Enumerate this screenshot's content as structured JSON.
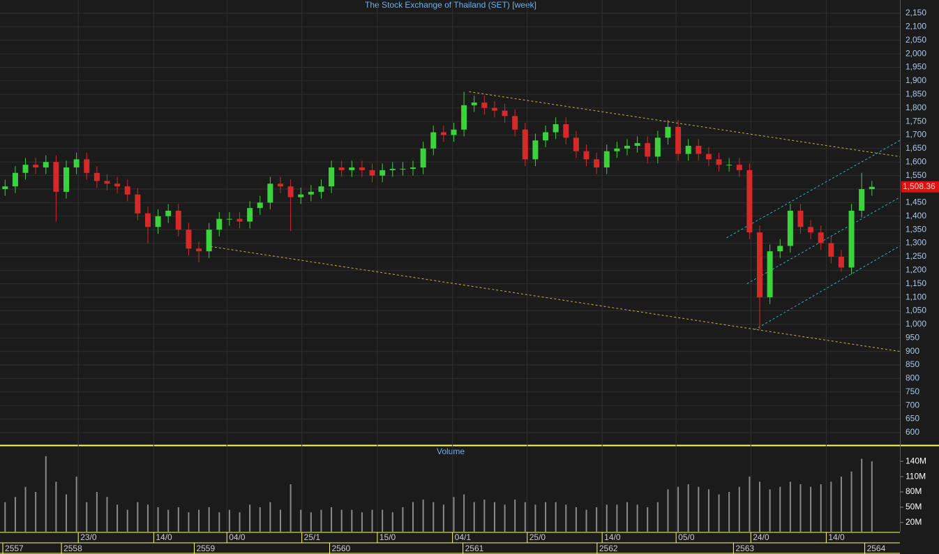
{
  "chart_data": [
    {
      "type": "candlestick",
      "title": "The Stock Exchange of Thailand (SET) [week]",
      "up_color": "#3bd23b",
      "down_color": "#d42a2a",
      "x": [
        2,
        6,
        10,
        14,
        18,
        22,
        26,
        30,
        34,
        38,
        42,
        46,
        50,
        54,
        58,
        62,
        66,
        70,
        74,
        78,
        82,
        86,
        90,
        94,
        98,
        102,
        106,
        110,
        114,
        118,
        122,
        126,
        130,
        134,
        138,
        142,
        146,
        150,
        154,
        158,
        162,
        166,
        170,
        174,
        178,
        182,
        186,
        190,
        194,
        198,
        202,
        206,
        210,
        214,
        218,
        222,
        226,
        230,
        234,
        238,
        242,
        246,
        250,
        254,
        258,
        262,
        266,
        270,
        274,
        278,
        282,
        286,
        290,
        294,
        298,
        302,
        306,
        310,
        314,
        318,
        322,
        326,
        330,
        334,
        338,
        342
      ],
      "open": [
        1500,
        1510,
        1560,
        1590,
        1580,
        1600,
        1490,
        1580,
        1610,
        1560,
        1530,
        1520,
        1510,
        1480,
        1410,
        1360,
        1400,
        1420,
        1350,
        1280,
        1270,
        1350,
        1390,
        1390,
        1380,
        1430,
        1450,
        1520,
        1510,
        1470,
        1480,
        1490,
        1510,
        1580,
        1570,
        1580,
        1570,
        1550,
        1570,
        1575,
        1575,
        1580,
        1650,
        1710,
        1700,
        1720,
        1810,
        1820,
        1800,
        1790,
        1770,
        1720,
        1610,
        1680,
        1710,
        1740,
        1690,
        1640,
        1610,
        1580,
        1640,
        1650,
        1660,
        1670,
        1620,
        1690,
        1730,
        1630,
        1660,
        1630,
        1610,
        1590,
        1590,
        1570,
        1340,
        1100,
        1270,
        1290,
        1420,
        1360,
        1340,
        1300,
        1250,
        1210,
        1420,
        1500
      ],
      "high": [
        1535,
        1585,
        1615,
        1615,
        1625,
        1625,
        1605,
        1635,
        1635,
        1585,
        1555,
        1545,
        1535,
        1505,
        1435,
        1425,
        1445,
        1445,
        1375,
        1305,
        1375,
        1415,
        1415,
        1415,
        1455,
        1475,
        1545,
        1545,
        1535,
        1505,
        1515,
        1535,
        1605,
        1605,
        1605,
        1605,
        1595,
        1595,
        1600,
        1600,
        1605,
        1675,
        1735,
        1735,
        1745,
        1860,
        1845,
        1845,
        1825,
        1815,
        1795,
        1745,
        1705,
        1735,
        1765,
        1765,
        1715,
        1665,
        1635,
        1665,
        1675,
        1685,
        1695,
        1695,
        1715,
        1755,
        1755,
        1685,
        1685,
        1655,
        1635,
        1615,
        1615,
        1595,
        1365,
        1295,
        1315,
        1445,
        1445,
        1385,
        1365,
        1325,
        1275,
        1445,
        1560,
        1530
      ],
      "low": [
        1475,
        1485,
        1535,
        1555,
        1555,
        1380,
        1465,
        1555,
        1535,
        1505,
        1495,
        1485,
        1455,
        1385,
        1300,
        1335,
        1375,
        1325,
        1255,
        1230,
        1245,
        1325,
        1365,
        1355,
        1355,
        1405,
        1425,
        1485,
        1345,
        1445,
        1455,
        1465,
        1485,
        1545,
        1545,
        1545,
        1525,
        1525,
        1545,
        1550,
        1550,
        1555,
        1625,
        1675,
        1675,
        1695,
        1785,
        1775,
        1765,
        1745,
        1695,
        1585,
        1585,
        1655,
        1685,
        1665,
        1615,
        1585,
        1555,
        1555,
        1615,
        1625,
        1635,
        1595,
        1595,
        1665,
        1605,
        1605,
        1605,
        1585,
        1565,
        1565,
        1545,
        1315,
        980,
        1075,
        1245,
        1265,
        1335,
        1315,
        1275,
        1225,
        1195,
        1185,
        1395,
        1475
      ],
      "close": [
        1510,
        1560,
        1590,
        1580,
        1600,
        1490,
        1580,
        1610,
        1560,
        1530,
        1520,
        1510,
        1480,
        1410,
        1360,
        1400,
        1420,
        1350,
        1280,
        1270,
        1350,
        1390,
        1390,
        1380,
        1430,
        1450,
        1520,
        1510,
        1470,
        1480,
        1490,
        1510,
        1580,
        1570,
        1580,
        1570,
        1550,
        1570,
        1575,
        1575,
        1580,
        1650,
        1710,
        1700,
        1720,
        1810,
        1820,
        1800,
        1790,
        1770,
        1720,
        1610,
        1680,
        1710,
        1740,
        1690,
        1640,
        1610,
        1580,
        1640,
        1650,
        1660,
        1670,
        1620,
        1690,
        1730,
        1630,
        1660,
        1630,
        1610,
        1590,
        1590,
        1570,
        1340,
        1100,
        1270,
        1290,
        1420,
        1360,
        1340,
        1300,
        1250,
        1210,
        1420,
        1500,
        1508.36
      ],
      "last_price": {
        "value": 1508.36,
        "label": "1,508.36"
      },
      "xlim": [
        0,
        353
      ],
      "ylim": [
        556,
        2199
      ],
      "yticks": [
        600,
        650,
        700,
        750,
        800,
        850,
        900,
        950,
        {
          "value": 1000,
          "label": "1,000"
        },
        {
          "value": 1050,
          "label": "1,050"
        },
        {
          "value": 1100,
          "label": "1,100"
        },
        {
          "value": 1150,
          "label": "1,150"
        },
        {
          "value": 1200,
          "label": "1,200"
        },
        {
          "value": 1250,
          "label": "1,250"
        },
        {
          "value": 1300,
          "label": "1,300"
        },
        {
          "value": 1350,
          "label": "1,350"
        },
        {
          "value": 1400,
          "label": "1,400"
        },
        {
          "value": 1450,
          "label": "1,450"
        },
        {
          "value": 1500,
          "label": "1,500"
        },
        {
          "value": 1550,
          "label": "1,550"
        },
        {
          "value": 1600,
          "label": "1,600"
        },
        {
          "value": 1650,
          "label": "1,650"
        },
        {
          "value": 1700,
          "label": "1,700"
        },
        {
          "value": 1750,
          "label": "1,750"
        },
        {
          "value": 1800,
          "label": "1,800"
        },
        {
          "value": 1850,
          "label": "1,850"
        },
        {
          "value": 1900,
          "label": "1,900"
        },
        {
          "value": 1950,
          "label": "1,950"
        },
        {
          "value": 2000,
          "label": "2,000"
        },
        {
          "value": 2050,
          "label": "2,050"
        },
        {
          "value": 2100,
          "label": "2,100"
        },
        {
          "value": 2150,
          "label": "2,150"
        }
      ],
      "xticks": [
        {
          "value": 30.7,
          "label": "23/0"
        },
        {
          "value": 60.3,
          "label": "14/0"
        },
        {
          "value": 89,
          "label": "04/0"
        },
        {
          "value": 118.4,
          "label": "25/1"
        },
        {
          "value": 148,
          "label": "15/0"
        },
        {
          "value": 177.5,
          "label": "04/1"
        },
        {
          "value": 206.8,
          "label": "25/0"
        },
        {
          "value": 236.2,
          "label": "14/0"
        },
        {
          "value": 265.2,
          "label": "05/0"
        },
        {
          "value": 294.5,
          "label": "24/0"
        },
        {
          "value": 324.1,
          "label": "14/0"
        }
      ],
      "year_ticks": [
        {
          "value": 1.1,
          "label": "2557"
        },
        {
          "value": 24.1,
          "label": "2558"
        },
        {
          "value": 76.2,
          "label": "2559"
        },
        {
          "value": 129.3,
          "label": "2560"
        },
        {
          "value": 181.6,
          "label": "2561"
        },
        {
          "value": 234.2,
          "label": "2562"
        },
        {
          "value": 287.7,
          "label": "2563"
        },
        {
          "value": 339.2,
          "label": "2564"
        }
      ],
      "grid": true,
      "trend_lines": [
        {
          "x": [
            184,
            353
          ],
          "y": [
            1860,
            1620
          ],
          "color": "#c8b04a"
        },
        {
          "x": [
            81,
            353
          ],
          "y": [
            1290,
            900
          ],
          "color": "#c8b04a"
        },
        {
          "x": [
            285,
            353
          ],
          "y": [
            1320,
            1680
          ],
          "color": "#2fb5c8"
        },
        {
          "x": [
            293,
            353
          ],
          "y": [
            1150,
            1470
          ],
          "color": "#2fb5c8"
        },
        {
          "x": [
            296,
            353
          ],
          "y": [
            980,
            1290
          ],
          "color": "#2fb5c8"
        }
      ]
    },
    {
      "type": "bar",
      "title": "Volume",
      "color": "#8a8a8a",
      "x": [
        2,
        6,
        10,
        14,
        18,
        22,
        26,
        30,
        34,
        38,
        42,
        46,
        50,
        54,
        58,
        62,
        66,
        70,
        74,
        78,
        82,
        86,
        90,
        94,
        98,
        102,
        106,
        110,
        114,
        118,
        122,
        126,
        130,
        134,
        138,
        142,
        146,
        150,
        154,
        158,
        162,
        166,
        170,
        174,
        178,
        182,
        186,
        190,
        194,
        198,
        202,
        206,
        210,
        214,
        218,
        222,
        226,
        230,
        234,
        238,
        242,
        246,
        250,
        254,
        258,
        262,
        266,
        270,
        274,
        278,
        282,
        286,
        290,
        294,
        298,
        302,
        306,
        310,
        314,
        318,
        322,
        326,
        330,
        334,
        338,
        342
      ],
      "values": [
        60,
        70,
        90,
        80,
        150,
        100,
        75,
        110,
        60,
        80,
        70,
        55,
        45,
        60,
        55,
        50,
        45,
        50,
        40,
        45,
        50,
        40,
        45,
        40,
        55,
        50,
        60,
        45,
        95,
        45,
        40,
        45,
        50,
        45,
        45,
        40,
        45,
        45,
        40,
        50,
        60,
        65,
        60,
        55,
        70,
        75,
        60,
        65,
        60,
        55,
        65,
        60,
        55,
        60,
        60,
        55,
        50,
        45,
        50,
        55,
        55,
        60,
        55,
        50,
        60,
        85,
        90,
        95,
        90,
        85,
        75,
        80,
        90,
        110,
        100,
        85,
        90,
        100,
        95,
        90,
        95,
        100,
        110,
        120,
        145,
        140
      ],
      "xlim": [
        0,
        353
      ],
      "ylim": [
        2,
        169
      ],
      "yticks": [
        {
          "value": 20,
          "label": "20M"
        },
        {
          "value": 50,
          "label": "50M"
        },
        {
          "value": 80,
          "label": "80M"
        },
        {
          "value": 110,
          "label": "110M"
        },
        {
          "value": 140,
          "label": "140M"
        }
      ]
    }
  ]
}
